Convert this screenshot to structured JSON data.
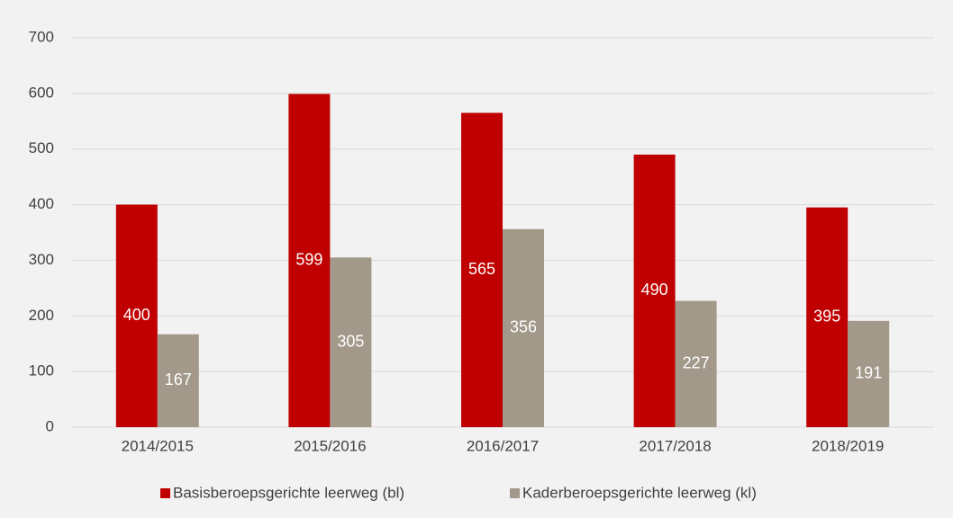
{
  "chart_data": {
    "type": "bar",
    "categories": [
      "2014/2015",
      "2015/2016",
      "2016/2017",
      "2017/2018",
      "2018/2019"
    ],
    "series": [
      {
        "name": "Basisberoepsgerichte leerweg (bl)",
        "color": "#c00000",
        "values": [
          400,
          599,
          565,
          490,
          395
        ]
      },
      {
        "name": "Kaderberoepsgerichte leerweg (kl)",
        "color": "#a2998a",
        "values": [
          167,
          305,
          356,
          227,
          191
        ]
      }
    ],
    "ylim": [
      0,
      700
    ],
    "yticks": [
      0,
      100,
      200,
      300,
      400,
      500,
      600,
      700
    ],
    "grid": true,
    "legend": "bottom"
  }
}
